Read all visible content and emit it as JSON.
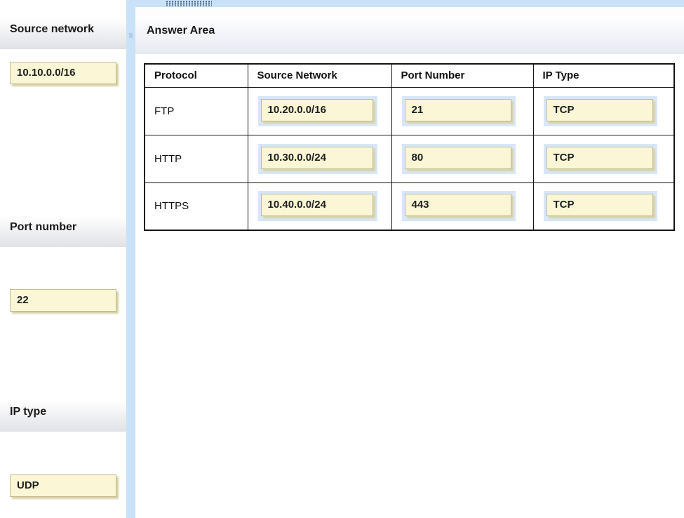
{
  "top": {
    "grip_icon": "grip-dots"
  },
  "palette": {
    "source_network": {
      "label": "Source network",
      "tokens": [
        "10.10.0.0/16"
      ]
    },
    "port_number": {
      "label": "Port number",
      "tokens": [
        "22"
      ]
    },
    "ip_type": {
      "label": "IP type",
      "tokens": [
        "UDP"
      ]
    }
  },
  "answer_area": {
    "title": "Answer Area",
    "table": {
      "headers": [
        "Protocol",
        "Source Network",
        "Port Number",
        "IP Type"
      ],
      "rows": [
        {
          "protocol": "FTP",
          "source_network": "10.20.0.0/16",
          "port_number": "21",
          "ip_type": "TCP"
        },
        {
          "protocol": "HTTP",
          "source_network": "10.30.0.0/24",
          "port_number": "80",
          "ip_type": "TCP"
        },
        {
          "protocol": "HTTPS",
          "source_network": "10.40.0.0/24",
          "port_number": "443",
          "ip_type": "TCP"
        }
      ]
    }
  },
  "colors": {
    "strip_blue": "#c9e2f7",
    "token_bg": "#faf6d6",
    "token_border": "#c2bb92",
    "token_shadow": "#d8d2aa",
    "dropzone_halo": "#d8e7f8",
    "header_gradient_bottom": "#e7eaf2",
    "table_border": "#151515"
  }
}
